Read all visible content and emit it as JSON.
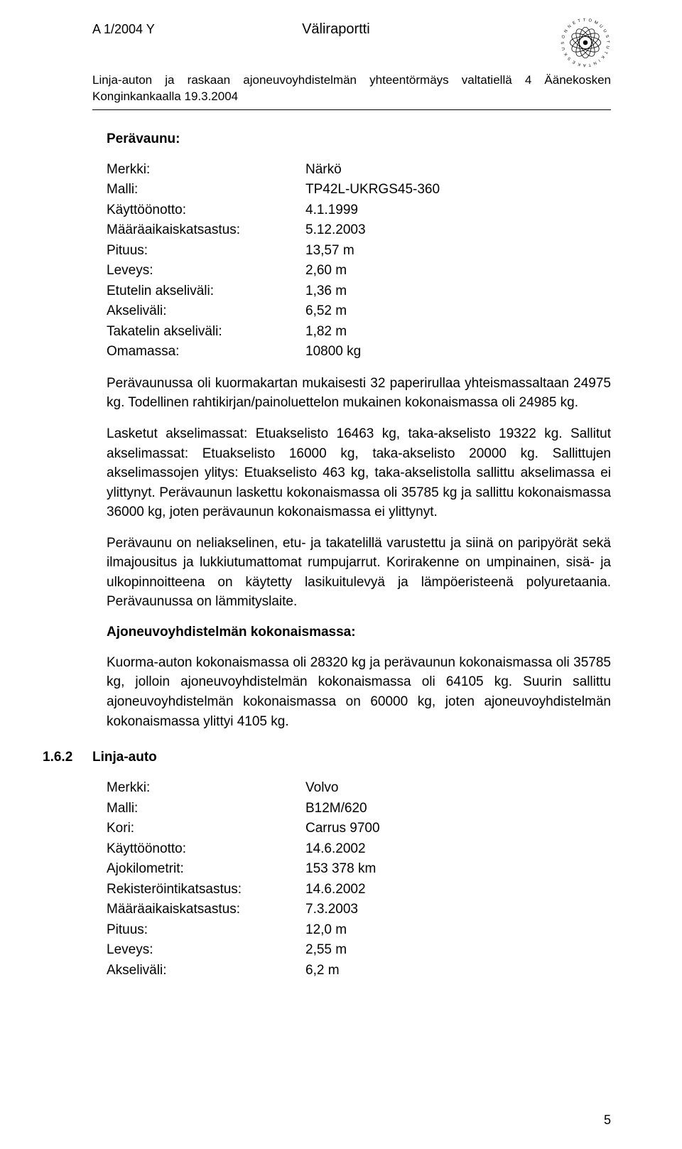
{
  "header": {
    "doc_number": "A 1/2004 Y",
    "title": "Väliraportti",
    "subtitle": "Linja-auton ja raskaan ajoneuvoyhdistelmän yhteentörmäys valtatiellä 4 Äänekosken Konginkankaalla 19.3.2004"
  },
  "logo": {
    "ring_color": "#000000",
    "bg_color": "#ffffff"
  },
  "trailer": {
    "heading": "Perävaunu:",
    "rows": [
      {
        "k": "Merkki:",
        "v": "Närkö"
      },
      {
        "k": "Malli:",
        "v": "TP42L-UKRGS45-360"
      },
      {
        "k": "Käyttöönotto:",
        "v": "4.1.1999"
      },
      {
        "k": "Määräaikaiskatsastus:",
        "v": "5.12.2003"
      },
      {
        "k": "Pituus:",
        "v": "13,57 m"
      },
      {
        "k": "Leveys:",
        "v": "2,60 m"
      },
      {
        "k": "Etutelin akseliväli:",
        "v": "1,36 m"
      },
      {
        "k": "Akseliväli:",
        "v": "6,52 m"
      },
      {
        "k": "Takatelin akseliväli:",
        "v": "1,82 m"
      },
      {
        "k": "Omamassa:",
        "v": "10800 kg"
      }
    ]
  },
  "paragraphs": {
    "p1": "Perävaunussa oli kuormakartan mukaisesti 32 paperirullaa yhteismassaltaan 24975 kg. Todellinen rahtikirjan/painoluettelon mukainen kokonaismassa oli 24985 kg.",
    "p2": "Lasketut akselimassat: Etuakselisto 16463 kg, taka-akselisto 19322 kg. Sallitut akselimassat: Etuakselisto 16000 kg, taka-akselisto 20000 kg. Sallittujen akselimassojen ylitys: Etuakselisto 463 kg, taka-akselistolla sallittu akselimassa ei ylittynyt. Perävaunun laskettu kokonaismassa oli 35785 kg ja sallittu kokonaismassa 36000 kg, joten perävaunun kokonaismassa ei ylittynyt.",
    "p3": "Perävaunu on neliakselinen, etu- ja takatelillä varustettu ja siinä on paripyörät sekä ilmajousitus ja lukkiutumattomat rumpujarrut. Korirakenne on umpinainen, sisä- ja ulkopinnoitteena on käytetty lasikuitulevyä ja lämpöeristeenä polyuretaania. Perävaunussa on lämmityslaite."
  },
  "combo": {
    "heading": "Ajoneuvoyhdistelmän kokonaismassa:",
    "p": "Kuorma-auton kokonaismassa oli 28320 kg ja perävaunun kokonaismassa oli 35785 kg, jolloin ajoneuvoyhdistelmän kokonaismassa oli 64105 kg. Suurin sallittu ajoneuvoyhdistelmän kokonaismassa on 60000 kg, joten ajoneuvoyhdistelmän kokonaismassa ylittyi 4105 kg."
  },
  "bus": {
    "section_num": "1.6.2",
    "section_label": "Linja-auto",
    "rows": [
      {
        "k": "Merkki:",
        "v": "Volvo"
      },
      {
        "k": "Malli:",
        "v": "B12M/620"
      },
      {
        "k": "Kori:",
        "v": "Carrus 9700"
      },
      {
        "k": "Käyttöönotto:",
        "v": "14.6.2002"
      },
      {
        "k": "Ajokilometrit:",
        "v": "153 378 km"
      },
      {
        "k": "Rekisteröintikatsastus:",
        "v": "14.6.2002"
      },
      {
        "k": "Määräaikaiskatsastus:",
        "v": "7.3.2003"
      },
      {
        "k": "Pituus:",
        "v": "12,0 m"
      },
      {
        "k": "Leveys:",
        "v": "2,55 m"
      },
      {
        "k": "Akseliväli:",
        "v": "6,2 m"
      }
    ]
  },
  "page_number": "5"
}
